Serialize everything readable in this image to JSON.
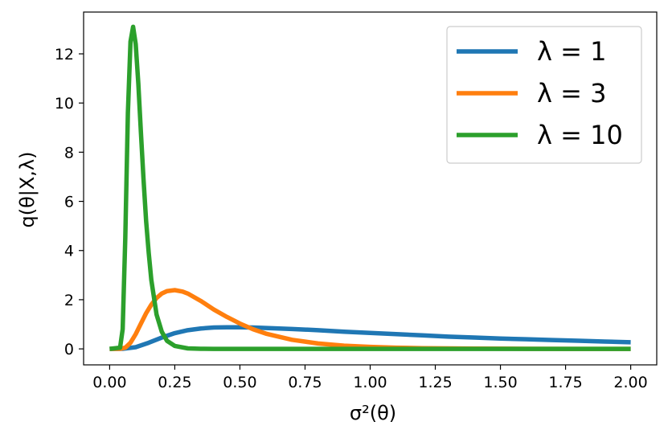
{
  "chart_data": {
    "type": "line",
    "title": "",
    "xlabel": "σ²(θ)",
    "ylabel": "q(θ|X,λ)",
    "xlim": [
      -0.1,
      2.1
    ],
    "ylim": [
      -0.65,
      13.7
    ],
    "x_ticks": [
      0.0,
      0.25,
      0.5,
      0.75,
      1.0,
      1.25,
      1.5,
      1.75,
      2.0
    ],
    "x_tick_labels": [
      "0.00",
      "0.25",
      "0.50",
      "0.75",
      "1.00",
      "1.25",
      "1.50",
      "1.75",
      "2.00"
    ],
    "y_ticks": [
      0,
      2,
      4,
      6,
      8,
      10,
      12
    ],
    "y_tick_labels": [
      "0",
      "2",
      "4",
      "6",
      "8",
      "10",
      "12"
    ],
    "grid": false,
    "legend_position": "top-right",
    "series": [
      {
        "name": "λ = 1",
        "color": "#1f77b4",
        "x": [
          0.0,
          0.05,
          0.1,
          0.15,
          0.2,
          0.25,
          0.3,
          0.35,
          0.4,
          0.45,
          0.5,
          0.55,
          0.6,
          0.7,
          0.8,
          0.9,
          1.0,
          1.1,
          1.2,
          1.3,
          1.4,
          1.5,
          1.6,
          1.7,
          1.8,
          1.9,
          2.0
        ],
        "y": [
          0,
          0.003,
          0.07,
          0.25,
          0.46,
          0.64,
          0.76,
          0.83,
          0.87,
          0.88,
          0.88,
          0.87,
          0.85,
          0.81,
          0.76,
          0.7,
          0.65,
          0.6,
          0.55,
          0.5,
          0.46,
          0.42,
          0.39,
          0.36,
          0.33,
          0.3,
          0.27
        ]
      },
      {
        "name": "λ = 3",
        "color": "#ff7f0e",
        "x": [
          0.0,
          0.04,
          0.06,
          0.08,
          0.1,
          0.12,
          0.14,
          0.16,
          0.18,
          0.2,
          0.22,
          0.25,
          0.28,
          0.3,
          0.35,
          0.4,
          0.45,
          0.5,
          0.55,
          0.6,
          0.7,
          0.8,
          0.9,
          1.0,
          1.1,
          1.2,
          1.4,
          1.6,
          1.8,
          2.0
        ],
        "y": [
          0,
          0.002,
          0.05,
          0.25,
          0.6,
          1.03,
          1.45,
          1.8,
          2.07,
          2.25,
          2.35,
          2.39,
          2.33,
          2.25,
          1.95,
          1.6,
          1.3,
          1.03,
          0.8,
          0.62,
          0.37,
          0.22,
          0.13,
          0.08,
          0.05,
          0.03,
          0.01,
          0.004,
          0.001,
          0.0
        ]
      },
      {
        "name": "λ = 10",
        "color": "#2ca02c",
        "x": [
          0.0,
          0.04,
          0.05,
          0.06,
          0.07,
          0.08,
          0.09,
          0.1,
          0.11,
          0.12,
          0.13,
          0.14,
          0.15,
          0.16,
          0.18,
          0.2,
          0.22,
          0.25,
          0.3,
          0.35,
          0.4,
          0.5,
          0.7,
          1.0,
          1.5,
          2.0
        ],
        "y": [
          0,
          0.05,
          0.8,
          4.5,
          9.6,
          12.5,
          13.1,
          12.4,
          10.8,
          8.8,
          6.9,
          5.2,
          3.9,
          2.8,
          1.4,
          0.7,
          0.33,
          0.12,
          0.02,
          0.004,
          0.001,
          0.0,
          0.0,
          0.0,
          0.0,
          0.0
        ]
      }
    ]
  }
}
